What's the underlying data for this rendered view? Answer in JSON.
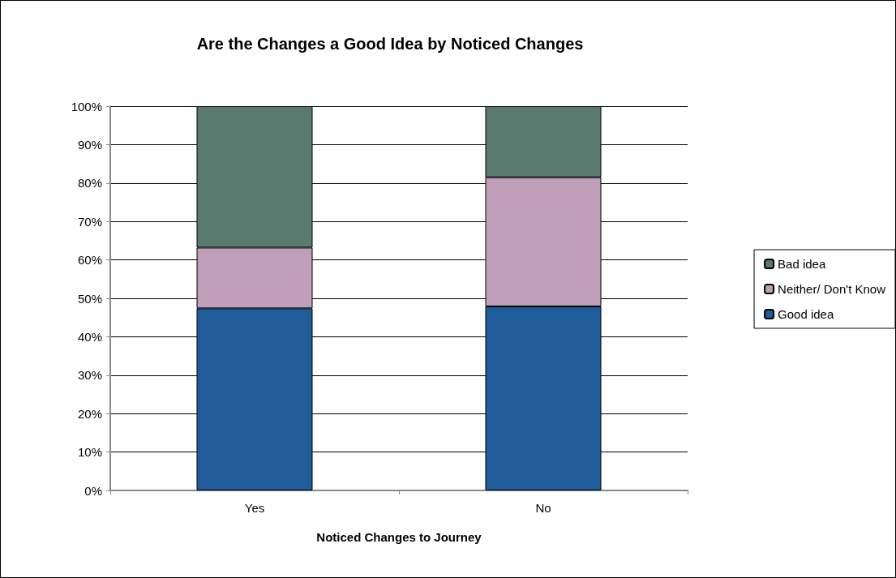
{
  "chart_data": {
    "type": "bar",
    "title": "Are the Changes a Good Idea by Noticed Changes",
    "xlabel": "Noticed Changes to Journey",
    "categories": [
      "Yes",
      "No"
    ],
    "stacked": true,
    "series": [
      {
        "name": "Good idea",
        "color": "#1f5c99",
        "values": [
          47.4,
          47.9
        ]
      },
      {
        "name": "Neither/ Don't Know",
        "color": "#c0a0b8",
        "values": [
          15.8,
          33.6
        ]
      },
      {
        "name": "Bad idea",
        "color": "#5a7a70",
        "values": [
          36.8,
          18.5
        ]
      }
    ],
    "ylim": [
      0,
      100
    ],
    "yticks": [
      {
        "value": 0,
        "label": "0%"
      },
      {
        "value": 10,
        "label": "10%"
      },
      {
        "value": 20,
        "label": "20%"
      },
      {
        "value": 30,
        "label": "30%"
      },
      {
        "value": 40,
        "label": "40%"
      },
      {
        "value": 50,
        "label": "50%"
      },
      {
        "value": 60,
        "label": "60%"
      },
      {
        "value": 70,
        "label": "70%"
      },
      {
        "value": 80,
        "label": "80%"
      },
      {
        "value": 90,
        "label": "90%"
      },
      {
        "value": 100,
        "label": "100%"
      }
    ],
    "grid": "y",
    "legend": "right"
  }
}
